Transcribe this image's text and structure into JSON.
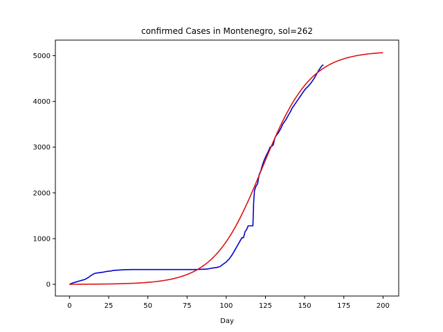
{
  "chart_data": {
    "type": "line",
    "title": "confirmed Cases in Montenegro, sol=262",
    "xlabel": "Day",
    "ylabel": "",
    "xlim": [
      -9,
      210
    ],
    "ylim": [
      -255,
      5340
    ],
    "x_ticks": [
      0,
      25,
      50,
      75,
      100,
      125,
      150,
      175,
      200
    ],
    "y_ticks": [
      0,
      1000,
      2000,
      3000,
      4000,
      5000
    ],
    "grid": false,
    "legend": "none",
    "series": [
      {
        "color": "#0000cc",
        "x": [
          0,
          2,
          4,
          6,
          8,
          10,
          12,
          14,
          16,
          18,
          20,
          22,
          24,
          26,
          28,
          30,
          35,
          40,
          45,
          50,
          60,
          70,
          80,
          85,
          88,
          90,
          92,
          94,
          96,
          98,
          100,
          102,
          104,
          106,
          108,
          110,
          111,
          112,
          113,
          114,
          115,
          116,
          117,
          117.5,
          118,
          119,
          120,
          121,
          122,
          123,
          124,
          125,
          126,
          127,
          128,
          129,
          130,
          131,
          132,
          133,
          134,
          135,
          136,
          137,
          138,
          139,
          140,
          141,
          142,
          143,
          144,
          145,
          146,
          147,
          148,
          149,
          150,
          151,
          152,
          153,
          154,
          155,
          156,
          157,
          158,
          159,
          160,
          161,
          162
        ],
        "y": [
          0,
          30,
          50,
          70,
          90,
          110,
          150,
          200,
          240,
          250,
          260,
          270,
          285,
          290,
          305,
          310,
          320,
          325,
          325,
          325,
          325,
          325,
          325,
          330,
          335,
          350,
          360,
          370,
          390,
          440,
          490,
          560,
          660,
          780,
          900,
          1020,
          1020,
          1150,
          1200,
          1280,
          1280,
          1280,
          1280,
          1800,
          2050,
          2150,
          2200,
          2400,
          2480,
          2600,
          2700,
          2780,
          2850,
          2920,
          3000,
          3020,
          3050,
          3200,
          3260,
          3300,
          3360,
          3420,
          3500,
          3550,
          3600,
          3660,
          3720,
          3780,
          3850,
          3900,
          3950,
          4000,
          4050,
          4100,
          4150,
          4200,
          4250,
          4290,
          4320,
          4360,
          4400,
          4450,
          4500,
          4560,
          4620,
          4680,
          4730,
          4780,
          4800
        ]
      },
      {
        "color": "#dd1111",
        "model": "logistic",
        "K": 5100,
        "r": 0.065,
        "t0": 123,
        "x_range": [
          0,
          200
        ]
      }
    ]
  }
}
